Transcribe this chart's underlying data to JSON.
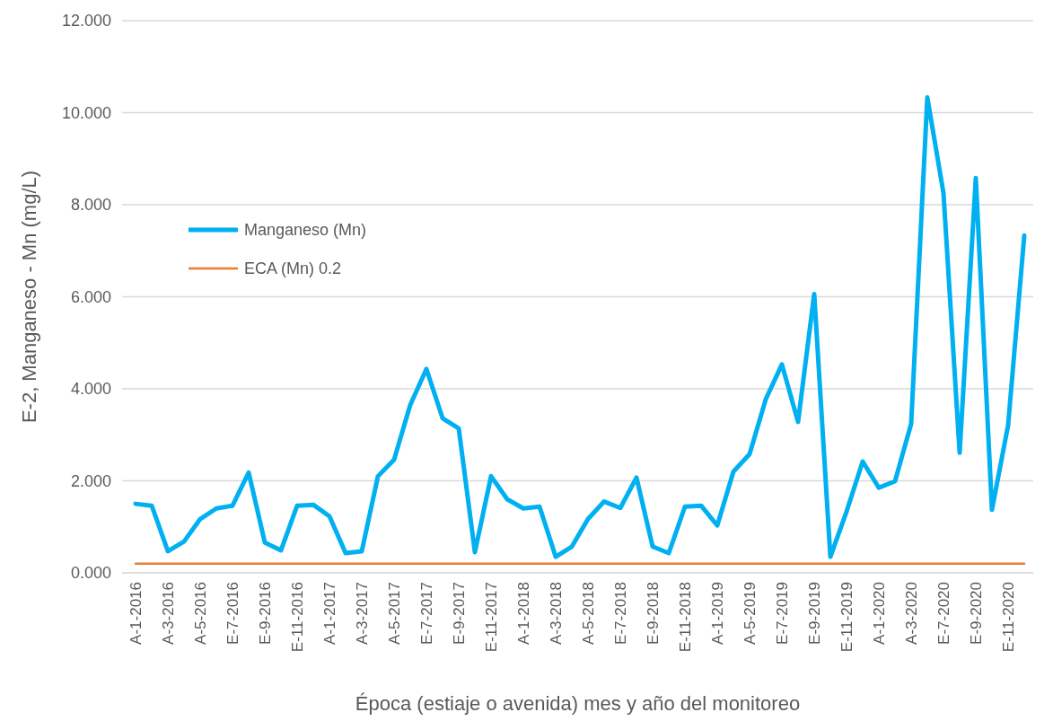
{
  "chart_data": {
    "type": "line",
    "xlabel": "Época (estiaje o avenida) mes y año del monitoreo",
    "ylabel": "E-2, Manganeso - Mn (mg/L)",
    "categories": [
      "A-1-2016",
      null,
      "A-3-2016",
      null,
      "A-5-2016",
      null,
      "E-7-2016",
      null,
      "E-9-2016",
      null,
      "E-11-2016",
      null,
      "A-1-2017",
      null,
      "A-3-2017",
      null,
      "A-5-2017",
      null,
      "E-7-2017",
      null,
      "E-9-2017",
      null,
      "E-11-2017",
      null,
      "A-1-2018",
      null,
      "A-3-2018",
      null,
      "A-5-2018",
      null,
      "E-7-2018",
      null,
      "E-9-2018",
      null,
      "E-11-2018",
      null,
      "A-1-2019",
      null,
      "A-5-2019",
      null,
      "E-7-2019",
      null,
      "E-9-2019",
      null,
      "E-11-2019",
      null,
      "A-1-2020",
      null,
      "A-3-2020",
      null,
      "E-7-2020",
      null,
      "E-9-2020",
      null,
      "E-11-2020",
      null
    ],
    "series": [
      {
        "name": "Manganeso (Mn)",
        "color": "#00b0f0",
        "values": [
          1.5,
          1.46,
          0.47,
          0.68,
          1.17,
          1.4,
          1.46,
          2.18,
          0.66,
          0.49,
          1.46,
          1.48,
          1.23,
          0.43,
          0.47,
          2.1,
          2.46,
          3.65,
          4.43,
          3.36,
          3.14,
          0.45,
          2.1,
          1.6,
          1.4,
          1.44,
          0.35,
          0.57,
          1.17,
          1.55,
          1.41,
          2.07,
          0.57,
          0.43,
          1.44,
          1.46,
          1.03,
          2.2,
          2.58,
          3.77,
          4.53,
          3.28,
          6.06,
          0.35,
          1.33,
          2.42,
          1.85,
          1.99,
          3.24,
          10.33,
          8.25,
          2.61,
          8.58,
          1.37,
          3.21,
          7.33
        ]
      },
      {
        "name": "ECA (Mn) 0.2",
        "color": "#ed7d31",
        "values": [
          0.2,
          0.2,
          0.2,
          0.2,
          0.2,
          0.2,
          0.2,
          0.2,
          0.2,
          0.2,
          0.2,
          0.2,
          0.2,
          0.2,
          0.2,
          0.2,
          0.2,
          0.2,
          0.2,
          0.2,
          0.2,
          0.2,
          0.2,
          0.2,
          0.2,
          0.2,
          0.2,
          0.2,
          0.2,
          0.2,
          0.2,
          0.2,
          0.2,
          0.2,
          0.2,
          0.2,
          0.2,
          0.2,
          0.2,
          0.2,
          0.2,
          0.2,
          0.2,
          0.2,
          0.2,
          0.2,
          0.2,
          0.2,
          0.2,
          0.2,
          0.2,
          0.2,
          0.2,
          0.2,
          0.2,
          0.2
        ]
      }
    ],
    "ylim": [
      0,
      12
    ],
    "yticks": [
      {
        "value": 0,
        "label": "0.000"
      },
      {
        "value": 2,
        "label": "2.000"
      },
      {
        "value": 4,
        "label": "4.000"
      },
      {
        "value": 6,
        "label": "6.000"
      },
      {
        "value": 8,
        "label": "8.000"
      },
      {
        "value": 10,
        "label": "10.000"
      },
      {
        "value": 12,
        "label": "12.000"
      }
    ],
    "grid": "y",
    "legend": "top left",
    "marker": "none",
    "line_style": "solid"
  }
}
